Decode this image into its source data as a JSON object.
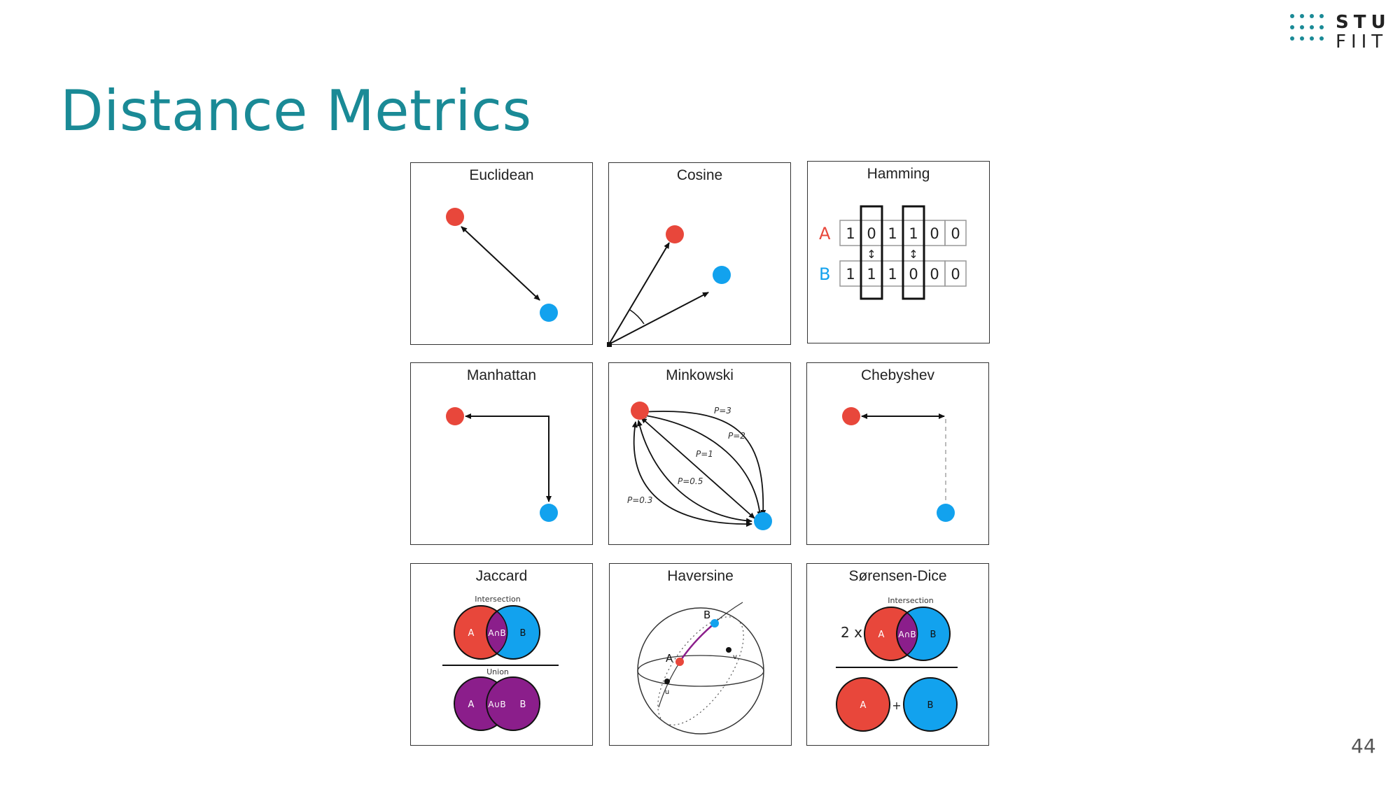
{
  "slide": {
    "title": "Distance Metrics",
    "page_number": "44",
    "logo": {
      "line1": "STU",
      "line2": "FIIT",
      "color": "#1a8a96"
    }
  },
  "colors": {
    "point_a": "#e8473b",
    "point_b": "#12a2ee",
    "overlap": "#8b1e8b",
    "title": "#1a8a96"
  },
  "panels": [
    {
      "title": "Euclidean"
    },
    {
      "title": "Cosine"
    },
    {
      "title": "Hamming",
      "labels": {
        "a": "A",
        "b": "B"
      },
      "row_a": [
        "1",
        "0",
        "1",
        "1",
        "0",
        "0"
      ],
      "row_b": [
        "1",
        "1",
        "1",
        "0",
        "0",
        "0"
      ],
      "arrow": "↕"
    },
    {
      "title": "Manhattan"
    },
    {
      "title": "Minkowski",
      "p_labels": [
        "P=3",
        "P=2",
        "P=1",
        "P=0.5",
        "P=0.3"
      ]
    },
    {
      "title": "Chebyshev"
    },
    {
      "title": "Jaccard",
      "intersection_label": "Intersection",
      "union_label": "Union",
      "a": "A",
      "b": "B",
      "intersection": "A∩B",
      "union": "A∪B"
    },
    {
      "title": "Haversine",
      "a": "A",
      "b": "B",
      "u": "u",
      "v": "v"
    },
    {
      "title": "Sørensen-Dice",
      "intersection_label": "Intersection",
      "factor": "2 x",
      "plus": "+",
      "a": "A",
      "b": "B",
      "intersection": "A∩B"
    }
  ]
}
